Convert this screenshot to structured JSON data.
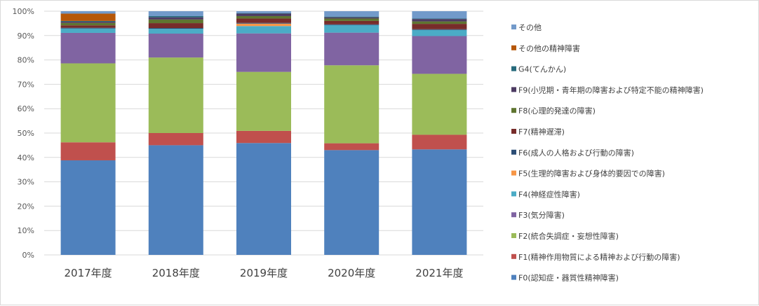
{
  "chart_data": {
    "type": "bar",
    "stacked": true,
    "percent": true,
    "categories": [
      "2017年度",
      "2018年度",
      "2019年度",
      "2020年度",
      "2021年度"
    ],
    "ylim": [
      0,
      100
    ],
    "y_ticks": [
      "0%",
      "10%",
      "20%",
      "30%",
      "40%",
      "50%",
      "60%",
      "70%",
      "80%",
      "90%",
      "100%"
    ],
    "grid": true,
    "legend_position": "right",
    "series": [
      {
        "name": "F0(認知症・器質性精神障害)",
        "color": "#4f81bd",
        "values": [
          38.8,
          45.0,
          45.9,
          43.0,
          43.3
        ]
      },
      {
        "name": "F1(精神作用物質による精神および行動の障害)",
        "color": "#c0504d",
        "values": [
          7.4,
          5.0,
          5.0,
          2.8,
          6.0
        ]
      },
      {
        "name": "F2(統合失調症・妄想性障害)",
        "color": "#9bbb59",
        "values": [
          32.4,
          31.0,
          24.2,
          32.0,
          25.0
        ]
      },
      {
        "name": "F3(気分障害)",
        "color": "#8064a2",
        "values": [
          12.5,
          9.8,
          15.8,
          13.4,
          15.5
        ]
      },
      {
        "name": "F4(神経症性障害)",
        "color": "#4bacc6",
        "values": [
          1.8,
          2.0,
          3.0,
          3.1,
          2.5
        ]
      },
      {
        "name": "F5(生理的障害および身体的要因での障害)",
        "color": "#f79646",
        "values": [
          0.0,
          0.0,
          1.0,
          0.0,
          0.0
        ]
      },
      {
        "name": "F6(成人の人格および行動の障害)",
        "color": "#2c4d75",
        "values": [
          0.3,
          0.3,
          0.3,
          0.3,
          0.3
        ]
      },
      {
        "name": "F7(精神遅滞)",
        "color": "#772c2a",
        "values": [
          1.0,
          2.0,
          1.8,
          1.4,
          2.2
        ]
      },
      {
        "name": "F8(心理的発達の障害)",
        "color": "#5f7530",
        "values": [
          1.0,
          1.5,
          1.0,
          1.0,
          1.0
        ]
      },
      {
        "name": "F9(小児期・青年期の障害および特定不能の精神障害)",
        "color": "#4d3b62",
        "values": [
          0.5,
          0.9,
          1.0,
          0.5,
          1.0
        ]
      },
      {
        "name": "G4(てんかん)",
        "color": "#276a7c",
        "values": [
          0.3,
          0.5,
          0.2,
          0.3,
          0.2
        ]
      },
      {
        "name": "その他の精神障害",
        "color": "#b65708",
        "values": [
          3.0,
          0.0,
          0.0,
          0.0,
          0.0
        ]
      },
      {
        "name": "その他",
        "color": "#729aca",
        "values": [
          1.0,
          2.0,
          0.8,
          2.2,
          3.0
        ]
      }
    ]
  }
}
